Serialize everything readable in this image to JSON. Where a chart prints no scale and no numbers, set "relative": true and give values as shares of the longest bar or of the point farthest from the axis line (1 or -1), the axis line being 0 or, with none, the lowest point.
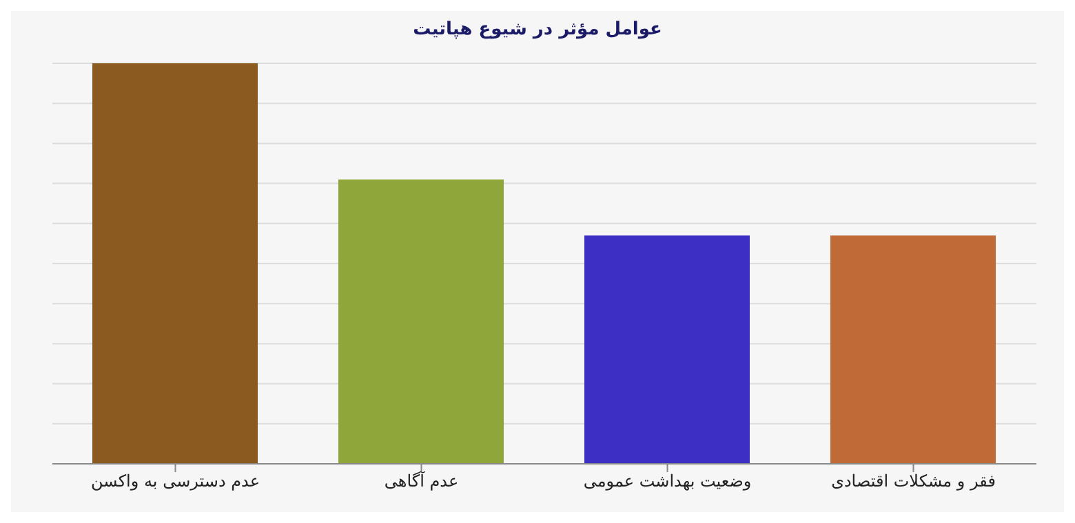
{
  "chart_data": {
    "type": "bar",
    "title": "عوامل مؤثر در شیوع هپاتیت",
    "categories": [
      "عدم دسترسی به واکسن",
      "عدم آگاهی",
      "وضعیت بهداشت عمومی",
      "فقر و مشکلات اقتصادی"
    ],
    "values": [
      1,
      0.71,
      0.57,
      0.57
    ],
    "colors": [
      "#8a5a20",
      "#8ea63a",
      "#3d2ec4",
      "#c06a38"
    ],
    "relative": true,
    "grid": "y"
  }
}
